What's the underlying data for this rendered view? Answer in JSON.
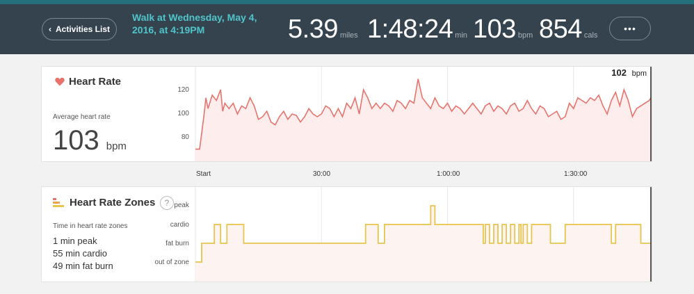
{
  "header": {
    "back_label": "Activities List",
    "activity_title": "Walk at Wednesday, May 4, 2016, at 4:19PM",
    "stats": [
      {
        "value": "5.39",
        "unit": "miles"
      },
      {
        "value": "1:48:24",
        "unit": "min"
      },
      {
        "value": "103",
        "unit": "bpm"
      },
      {
        "value": "854",
        "unit": "cals"
      }
    ],
    "more_label": "•••"
  },
  "heart_rate": {
    "title": "Heart Rate",
    "avg_label": "Average heart rate",
    "avg_value": "103",
    "avg_unit": "bpm",
    "cursor_value": "102",
    "cursor_unit": "bpm",
    "y_ticks": [
      "120",
      "100",
      "80"
    ],
    "x_ticks": [
      "Start",
      "30:00",
      "1:00:00",
      "1:30:00"
    ],
    "colors": {
      "line": "#e8736c",
      "fill": "#fdeeed",
      "heart": "#e8736c"
    }
  },
  "zones": {
    "title": "Heart Rate Zones",
    "help_icon": "?",
    "subtitle": "Time in heart rate zones",
    "zone_labels": [
      "peak",
      "cardio",
      "fat burn",
      "out of zone"
    ],
    "summary": [
      "1 min peak",
      "55 min cardio",
      "49 min fat burn"
    ],
    "colors": {
      "line": "#e8c44c",
      "fill": "#fdf3f1"
    }
  },
  "chart_data": [
    {
      "type": "line",
      "title": "Heart Rate",
      "ylabel": "bpm",
      "xlabel": "",
      "x_unit": "minutes",
      "ylim": [
        65,
        135
      ],
      "xlim": [
        0,
        108.4
      ],
      "y_ticks": [
        80,
        100,
        120
      ],
      "x_tick_labels": [
        "Start",
        "30:00",
        "1:00:00",
        "1:30:00"
      ],
      "grid": true,
      "series": [
        {
          "x": [
            0,
            1,
            2,
            2.5,
            3,
            4,
            5,
            6,
            6.5,
            7,
            8,
            9,
            10,
            11,
            12,
            13,
            14,
            15,
            16,
            17,
            18,
            19,
            20,
            21,
            22,
            23,
            24,
            25,
            26,
            27,
            28,
            29,
            30,
            31,
            32,
            33,
            34,
            35,
            36,
            37,
            38,
            39,
            40,
            41,
            42,
            43,
            44,
            45,
            46,
            47,
            48,
            49,
            50,
            51,
            52,
            53,
            54,
            55,
            56,
            57,
            58,
            59,
            60,
            61,
            62,
            63,
            64,
            65,
            66,
            67,
            68,
            69,
            70,
            71,
            72,
            73,
            74,
            75,
            76,
            77,
            78,
            79,
            80,
            81,
            82,
            83,
            84,
            85,
            86,
            87,
            88,
            89,
            90,
            91,
            92,
            93,
            94,
            95,
            96,
            97,
            98,
            99,
            100,
            101,
            102,
            103,
            104,
            105,
            106,
            107,
            108,
            108.4
          ],
          "y": [
            74,
            74,
            98,
            112,
            104,
            114,
            110,
            118,
            102,
            108,
            104,
            108,
            100,
            106,
            104,
            112,
            106,
            96,
            98,
            102,
            94,
            92,
            98,
            102,
            96,
            100,
            99,
            94,
            98,
            104,
            100,
            98,
            100,
            106,
            104,
            98,
            104,
            98,
            108,
            104,
            112,
            100,
            118,
            112,
            104,
            108,
            104,
            108,
            106,
            102,
            110,
            108,
            104,
            110,
            108,
            126,
            112,
            108,
            104,
            112,
            106,
            104,
            108,
            102,
            106,
            104,
            100,
            104,
            108,
            104,
            100,
            106,
            108,
            102,
            106,
            104,
            100,
            106,
            108,
            102,
            104,
            110,
            104,
            100,
            106,
            104,
            98,
            100,
            102,
            96,
            98,
            108,
            104,
            112,
            110,
            108,
            112,
            110,
            114,
            106,
            100,
            110,
            116,
            106,
            118,
            110,
            98,
            104,
            106,
            108,
            110,
            112
          ],
          "name": ""
        }
      ]
    },
    {
      "type": "line",
      "title": "Heart Rate Zones",
      "ylabel": "",
      "xlabel": "",
      "x_unit": "minutes",
      "y_categories": [
        "out of zone",
        "fat burn",
        "cardio",
        "peak"
      ],
      "xlim": [
        0,
        108.4
      ],
      "grid": true,
      "series": [
        {
          "x": [
            0,
            1,
            1.5,
            4,
            4.5,
            5.5,
            6,
            7,
            7.5,
            9,
            11,
            11.5,
            14,
            14.5,
            40,
            40.5,
            43,
            43.5,
            44,
            45,
            45.5,
            51,
            55,
            56,
            57,
            68,
            68.5,
            69,
            70,
            71,
            72,
            73,
            74,
            75,
            76,
            77,
            77.5,
            78,
            79,
            80,
            81,
            84,
            84.5,
            88,
            98,
            99,
            100,
            103,
            106,
            107,
            108.4
          ],
          "y": [
            0,
            0,
            1,
            1,
            2,
            2,
            1,
            1,
            2,
            2,
            2,
            1,
            1,
            1,
            1,
            2,
            2,
            1,
            1,
            2,
            2,
            2,
            2,
            3,
            2,
            2,
            1,
            2,
            1,
            2,
            1,
            2,
            1,
            2,
            1,
            2,
            1,
            2,
            1,
            2,
            2,
            2,
            1,
            2,
            2,
            1,
            2,
            2,
            1,
            1,
            1
          ]
        }
      ]
    }
  ]
}
